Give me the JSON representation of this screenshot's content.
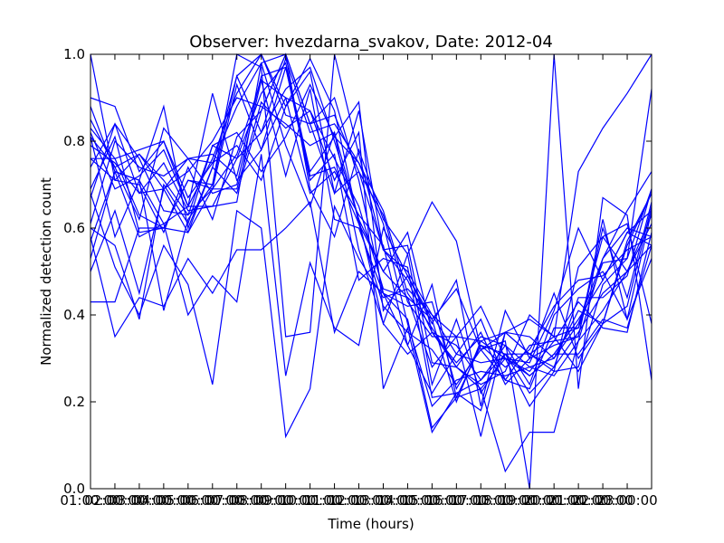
{
  "chart_data": {
    "type": "line",
    "title": "Observer: hvezdarna_svakov, Date: 2012-04",
    "xlabel": "Time (hours)",
    "ylabel": "Normalized detection count",
    "xlim": [
      1,
      24
    ],
    "ylim": [
      0.0,
      1.0
    ],
    "x_ticks": [
      {
        "value": 1,
        "label": "01:00:00"
      },
      {
        "value": 2,
        "label": "02:00:00"
      },
      {
        "value": 3,
        "label": "03:00:00"
      },
      {
        "value": 4,
        "label": "04:00:00"
      },
      {
        "value": 5,
        "label": "05:00:00"
      },
      {
        "value": 6,
        "label": "06:00:00"
      },
      {
        "value": 7,
        "label": "07:00:00"
      },
      {
        "value": 8,
        "label": "08:00:00"
      },
      {
        "value": 9,
        "label": "09:00:00"
      },
      {
        "value": 10,
        "label": "10:00:00"
      },
      {
        "value": 11,
        "label": "11:00:00"
      },
      {
        "value": 12,
        "label": "12:00:00"
      },
      {
        "value": 13,
        "label": "13:00:00"
      },
      {
        "value": 14,
        "label": "14:00:00"
      },
      {
        "value": 15,
        "label": "15:00:00"
      },
      {
        "value": 16,
        "label": "16:00:00"
      },
      {
        "value": 17,
        "label": "17:00:00"
      },
      {
        "value": 18,
        "label": "18:00:00"
      },
      {
        "value": 19,
        "label": "19:00:00"
      },
      {
        "value": 20,
        "label": "20:00:00"
      },
      {
        "value": 21,
        "label": "21:00:00"
      },
      {
        "value": 22,
        "label": "22:00:00"
      },
      {
        "value": 23,
        "label": "23:00:00"
      }
    ],
    "y_ticks": [
      {
        "value": 0.0,
        "label": "0.0"
      },
      {
        "value": 0.2,
        "label": "0.2"
      },
      {
        "value": 0.4,
        "label": "0.4"
      },
      {
        "value": 0.6,
        "label": "0.6"
      },
      {
        "value": 0.8,
        "label": "0.8"
      },
      {
        "value": 1.0,
        "label": "1.0"
      }
    ],
    "grid": false,
    "line_color": "#0000ff",
    "x": [
      1,
      2,
      3,
      4,
      5,
      6,
      7,
      8,
      9,
      10,
      11,
      12,
      13,
      14,
      15,
      16,
      17,
      18,
      19,
      20,
      21,
      22,
      23,
      24
    ],
    "series": [
      {
        "values": [
          1.0,
          0.71,
          0.7,
          0.59,
          0.74,
          0.62,
          0.81,
          0.87,
          1.0,
          0.84,
          0.68,
          0.87,
          0.55,
          0.5,
          0.4,
          0.31,
          0.29,
          0.3,
          0.27,
          0.34,
          0.35,
          0.6,
          0.44,
          0.66
        ]
      },
      {
        "values": [
          0.85,
          0.74,
          0.62,
          0.83,
          0.76,
          0.75,
          0.88,
          0.98,
          1.0,
          0.69,
          0.58,
          0.78,
          0.62,
          0.54,
          0.24,
          0.39,
          0.22,
          0.31,
          0.31,
          0.28,
          0.44,
          0.44,
          0.49,
          0.69
        ]
      },
      {
        "values": [
          0.9,
          0.88,
          0.73,
          0.8,
          0.67,
          0.75,
          0.79,
          0.71,
          0.88,
          0.96,
          0.68,
          0.73,
          0.63,
          0.43,
          0.35,
          0.35,
          0.34,
          0.36,
          0.35,
          0.3,
          0.38,
          0.53,
          0.6,
          0.58
        ]
      },
      {
        "values": [
          0.69,
          0.81,
          0.59,
          0.6,
          0.71,
          0.69,
          0.93,
          0.78,
          0.97,
          0.71,
          0.77,
          0.48,
          0.53,
          0.51,
          0.21,
          0.22,
          0.25,
          0.31,
          0.26,
          0.31,
          0.31,
          0.39,
          0.37,
          0.56
        ]
      },
      {
        "values": [
          0.67,
          0.84,
          0.76,
          0.64,
          0.63,
          0.79,
          0.82,
          0.73,
          0.81,
          0.93,
          0.81,
          0.75,
          0.61,
          0.38,
          0.19,
          0.25,
          0.27,
          0.26,
          0.28,
          0.26,
          0.34,
          0.41,
          0.5,
          0.63
        ]
      },
      {
        "values": [
          0.76,
          0.71,
          0.77,
          0.71,
          0.63,
          0.69,
          0.77,
          0.94,
          0.72,
          0.92,
          0.62,
          0.6,
          0.45,
          0.33,
          0.47,
          0.21,
          0.33,
          0.28,
          0.32,
          0.42,
          0.48,
          0.49,
          0.55,
          0.58
        ]
      },
      {
        "values": [
          0.61,
          0.8,
          0.74,
          0.72,
          0.76,
          0.68,
          0.7,
          0.94,
          0.9,
          0.68,
          0.73,
          0.63,
          0.56,
          0.33,
          0.22,
          0.31,
          0.39,
          0.25,
          0.33,
          0.34,
          0.43,
          0.37,
          0.36,
          0.59
        ]
      },
      {
        "values": [
          0.81,
          0.74,
          0.77,
          0.69,
          0.73,
          0.8,
          0.9,
          0.88,
          0.84,
          0.79,
          0.82,
          0.62,
          0.5,
          0.44,
          0.28,
          0.35,
          0.42,
          0.3,
          0.26,
          0.31,
          0.39,
          0.48,
          0.59,
          0.64
        ]
      },
      {
        "values": [
          0.57,
          0.73,
          0.71,
          0.61,
          0.65,
          0.65,
          0.76,
          0.82,
          0.99,
          0.82,
          0.84,
          0.75,
          0.64,
          0.45,
          0.37,
          0.28,
          0.36,
          0.24,
          0.3,
          0.33,
          0.35,
          0.62,
          0.39,
          0.53
        ]
      },
      {
        "values": [
          0.79,
          0.75,
          0.68,
          0.75,
          0.64,
          0.65,
          0.66,
          0.98,
          0.79,
          0.65,
          0.82,
          0.55,
          0.38,
          0.31,
          0.36,
          0.29,
          0.35,
          0.33,
          0.24,
          0.4,
          0.46,
          0.5,
          0.39,
          0.64
        ]
      },
      {
        "values": [
          0.5,
          0.64,
          0.45,
          0.69,
          0.59,
          0.74,
          0.68,
          0.87,
          1.0,
          0.84,
          0.86,
          0.73,
          0.55,
          0.48,
          0.36,
          0.28,
          0.24,
          0.27,
          0.4,
          0.35,
          0.37,
          0.58,
          0.5,
          0.56
        ]
      },
      {
        "values": [
          0.74,
          0.84,
          0.68,
          0.69,
          0.76,
          0.77,
          0.72,
          0.95,
          0.97,
          0.72,
          0.74,
          0.61,
          0.5,
          0.59,
          0.36,
          0.33,
          0.25,
          0.33,
          0.28,
          0.3,
          0.41,
          0.38,
          0.57,
          0.68
        ]
      },
      {
        "values": [
          0.82,
          0.69,
          0.72,
          0.78,
          0.65,
          0.76,
          0.91,
          1.0,
          0.86,
          0.84,
          0.9,
          0.71,
          0.45,
          0.42,
          0.43,
          0.23,
          0.33,
          0.31,
          0.22,
          0.28,
          0.36,
          0.45,
          0.5,
          0.61
        ]
      },
      {
        "values": [
          0.76,
          0.76,
          0.63,
          0.6,
          0.71,
          0.7,
          0.95,
          1.0,
          0.88,
          0.99,
          0.87,
          0.61,
          0.42,
          0.36,
          0.32,
          0.24,
          0.32,
          0.25,
          0.23,
          0.37,
          0.37,
          0.52,
          0.53,
          0.69
        ]
      },
      {
        "values": [
          0.43,
          0.43,
          0.6,
          0.6,
          0.59,
          0.69,
          0.69,
          0.89,
          0.83,
          0.87,
          0.71,
          0.82,
          0.23,
          0.37,
          0.13,
          0.22,
          0.18,
          0.36,
          0.31,
          0.35,
          0.27,
          0.38,
          0.56,
          0.68
        ]
      },
      {
        "values": [
          0.6,
          0.56,
          0.39,
          0.7,
          0.61,
          0.79,
          0.76,
          0.91,
          0.98,
          0.73,
          0.81,
          0.89,
          0.41,
          0.49,
          0.38,
          0.48,
          0.19,
          0.41,
          0.3,
          0.45,
          0.3,
          0.38,
          0.42,
          0.65
        ]
      },
      {
        "values": [
          0.58,
          0.35,
          0.44,
          0.42,
          0.53,
          0.45,
          0.55,
          0.55,
          0.6,
          0.66,
          0.36,
          0.5,
          0.45,
          0.39,
          0.14,
          0.21,
          0.23,
          0.3,
          0.29,
          0.41,
          0.6,
          0.48,
          0.59,
          0.56
        ]
      },
      {
        "values": [
          0.68,
          0.51,
          0.4,
          0.56,
          0.47,
          0.24,
          0.64,
          0.6,
          0.12,
          0.23,
          0.65,
          0.53,
          0.44,
          0.46,
          0.4,
          0.35,
          0.12,
          0.36,
          0.31,
          0.27,
          0.51,
          0.58,
          0.61,
          0.38
        ]
      },
      {
        "values": [
          0.53,
          0.73,
          0.58,
          0.61,
          0.4,
          0.49,
          0.43,
          0.77,
          0.26,
          0.52,
          0.37,
          0.33,
          0.6,
          0.49,
          0.39,
          0.46,
          0.32,
          0.34,
          0.0,
          1.0,
          0.23,
          0.67,
          0.63,
          0.25
        ]
      },
      {
        "values": [
          0.81,
          0.58,
          0.71,
          0.41,
          0.62,
          0.7,
          1.0,
          0.97,
          0.35,
          0.36,
          1.0,
          0.77,
          0.55,
          0.56,
          0.29,
          0.28,
          0.23,
          0.04,
          0.13,
          0.13,
          0.34,
          0.53,
          0.64,
          0.73
        ]
      },
      {
        "values": [
          0.88,
          0.73,
          0.71,
          0.88,
          0.6,
          0.74,
          0.95,
          0.82,
          0.92,
          0.97,
          0.8,
          0.62,
          0.38,
          0.54,
          0.66,
          0.57,
          0.32,
          0.36,
          0.39,
          0.35,
          0.73,
          0.83,
          0.91,
          1.0
        ]
      },
      {
        "values": [
          0.83,
          0.76,
          0.78,
          0.8,
          0.65,
          0.91,
          0.71,
          0.78,
          0.9,
          0.87,
          0.76,
          0.65,
          0.46,
          0.44,
          0.39,
          0.2,
          0.34,
          0.3,
          0.19,
          0.27,
          0.28,
          0.47,
          0.53,
          0.92
        ]
      }
    ]
  }
}
